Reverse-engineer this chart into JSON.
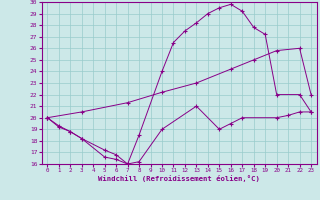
{
  "xlabel": "Windchill (Refroidissement éolien,°C)",
  "bg_color": "#cce8e8",
  "grid_color": "#99cccc",
  "line_color": "#880088",
  "xlim": [
    -0.5,
    23.5
  ],
  "ylim": [
    16,
    30
  ],
  "xticks": [
    0,
    1,
    2,
    3,
    4,
    5,
    6,
    7,
    8,
    9,
    10,
    11,
    12,
    13,
    14,
    15,
    16,
    17,
    18,
    19,
    20,
    21,
    22,
    23
  ],
  "yticks": [
    16,
    17,
    18,
    19,
    20,
    21,
    22,
    23,
    24,
    25,
    26,
    27,
    28,
    29,
    30
  ],
  "series1_x": [
    0,
    1,
    2,
    3,
    5,
    6,
    7,
    8,
    10,
    13,
    15,
    16,
    17,
    20,
    21,
    22,
    23
  ],
  "series1_y": [
    20,
    19.2,
    18.8,
    18.2,
    16.6,
    16.4,
    16.0,
    16.2,
    19.0,
    21.0,
    19.0,
    19.5,
    20.0,
    20.0,
    20.2,
    20.5,
    20.5
  ],
  "series2_x": [
    0,
    3,
    7,
    10,
    13,
    16,
    18,
    20,
    22,
    23
  ],
  "series2_y": [
    20.0,
    20.5,
    21.3,
    22.2,
    23.0,
    24.2,
    25.0,
    25.8,
    26.0,
    22.0
  ],
  "series3_x": [
    0,
    1,
    2,
    3,
    5,
    6,
    7,
    8,
    10,
    11,
    12,
    13,
    14,
    15,
    16,
    17,
    18,
    19,
    20,
    22,
    23
  ],
  "series3_y": [
    20.0,
    19.3,
    18.8,
    18.2,
    17.2,
    16.8,
    16.0,
    18.5,
    24.0,
    26.5,
    27.5,
    28.2,
    29.0,
    29.5,
    29.8,
    29.2,
    27.8,
    27.2,
    22.0,
    22.0,
    20.5
  ]
}
